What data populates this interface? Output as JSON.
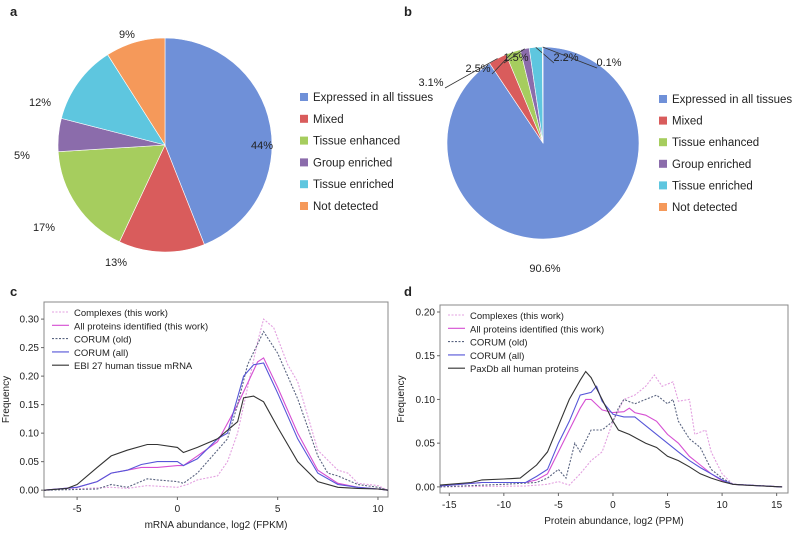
{
  "panels": {
    "a": "a",
    "b": "b",
    "c": "c",
    "d": "d"
  },
  "chart_data": [
    {
      "type": "pie",
      "panel": "a",
      "categories": [
        "Expressed in all tissues",
        "Mixed",
        "Tissue enhanced",
        "Group enriched",
        "Tissue enriched",
        "Not detected"
      ],
      "values": [
        44,
        13,
        17,
        5,
        12,
        9
      ],
      "labels": [
        "44%",
        "13%",
        "17%",
        "5%",
        "12%",
        "9%"
      ],
      "colors": [
        "#6f90d8",
        "#d95c5c",
        "#a6cd5e",
        "#8b6cab",
        "#5ec6df",
        "#f5995a"
      ],
      "legend": "right"
    },
    {
      "type": "pie",
      "panel": "b",
      "categories": [
        "Expressed in all tissues",
        "Mixed",
        "Tissue enhanced",
        "Group enriched",
        "Tissue enriched",
        "Not detected"
      ],
      "values": [
        90.6,
        3.1,
        2.5,
        1.5,
        2.2,
        0.1
      ],
      "labels": [
        "90.6%",
        "3.1%",
        "2.5%",
        "1.5%",
        "2.2%",
        "0.1%"
      ],
      "colors": [
        "#6f90d8",
        "#d95c5c",
        "#a6cd5e",
        "#8b6cab",
        "#5ec6df",
        "#f5995a"
      ],
      "legend": "right"
    },
    {
      "type": "line",
      "panel": "c",
      "xlabel": "mRNA abundance, log2 (FPKM)",
      "ylabel": "Frequency",
      "xlim": [
        -6.65,
        10.5
      ],
      "ylim": [
        -0.012,
        0.33
      ],
      "xticks": [
        -5,
        0,
        5,
        10
      ],
      "yticks": [
        0,
        0.05,
        0.1,
        0.15,
        0.2,
        0.25,
        0.3
      ],
      "ytick_labels": [
        "0.00",
        "0.05",
        "0.10",
        "0.15",
        "0.20",
        "0.25",
        "0.30"
      ],
      "legend": "top-left",
      "grid": false,
      "series": [
        {
          "name": "Complexes (this work)",
          "color": "#e3a0e0",
          "dash": "dotted",
          "x": [
            -6.65,
            -3.3,
            -2.5,
            -1.5,
            0,
            0.5,
            1,
            2,
            2.5,
            3,
            3.5,
            4,
            4.3,
            4.8,
            5.5,
            6,
            7,
            8,
            8.5,
            9,
            10,
            10.5
          ],
          "y": [
            0,
            0.005,
            0.003,
            0.008,
            0.005,
            0.01,
            0.018,
            0.025,
            0.05,
            0.1,
            0.18,
            0.26,
            0.3,
            0.285,
            0.22,
            0.19,
            0.07,
            0.035,
            0.03,
            0.012,
            0.008,
            0
          ]
        },
        {
          "name": "All proteins identified (this work)",
          "color": "#d64fd3",
          "dash": "solid",
          "x": [
            -6.65,
            -5,
            -4,
            -3.3,
            -2.5,
            -1.8,
            -1,
            0,
            0.3,
            1,
            2,
            3,
            4,
            4.3,
            5,
            6,
            7,
            8,
            9,
            10,
            10.5
          ],
          "y": [
            0,
            0.005,
            0.015,
            0.03,
            0.035,
            0.04,
            0.04,
            0.043,
            0.043,
            0.06,
            0.085,
            0.15,
            0.225,
            0.232,
            0.18,
            0.1,
            0.035,
            0.012,
            0.005,
            0.002,
            0
          ]
        },
        {
          "name": "CORUM (old)",
          "color": "#5a6480",
          "dash": "dotted",
          "x": [
            -6.65,
            -4,
            -3.3,
            -2.5,
            -1.5,
            -1,
            0,
            0.3,
            1,
            2,
            2.5,
            3,
            3.5,
            4.3,
            5,
            6,
            7,
            7.5,
            8,
            9,
            10,
            10.5
          ],
          "y": [
            0,
            0.002,
            0.01,
            0.005,
            0.02,
            0.018,
            0.015,
            0.012,
            0.03,
            0.07,
            0.09,
            0.15,
            0.22,
            0.278,
            0.24,
            0.16,
            0.06,
            0.03,
            0.025,
            0.01,
            0.005,
            0
          ]
        },
        {
          "name": "CORUM (all)",
          "color": "#5656d8",
          "dash": "solid",
          "x": [
            -6.65,
            -5,
            -4,
            -3.3,
            -2.5,
            -1.8,
            -1,
            0,
            0.3,
            1,
            2,
            2.5,
            3.3,
            3.8,
            4.3,
            5,
            6,
            7,
            8,
            9,
            10,
            10.5
          ],
          "y": [
            0,
            0.005,
            0.015,
            0.03,
            0.035,
            0.045,
            0.05,
            0.05,
            0.043,
            0.055,
            0.09,
            0.1,
            0.2,
            0.22,
            0.223,
            0.17,
            0.09,
            0.03,
            0.01,
            0.005,
            0.002,
            0
          ]
        },
        {
          "name": "EBI 27 human tissue mRNA",
          "color": "#333333",
          "dash": "solid",
          "x": [
            -6.65,
            -5.5,
            -5,
            -4,
            -3.3,
            -2.5,
            -1.5,
            -1,
            0,
            0.3,
            1,
            2,
            3,
            3.3,
            3.8,
            4.3,
            5,
            5.5,
            6,
            7,
            8,
            9,
            10,
            10.5
          ],
          "y": [
            0,
            0.003,
            0.01,
            0.04,
            0.06,
            0.07,
            0.08,
            0.08,
            0.075,
            0.066,
            0.075,
            0.09,
            0.12,
            0.162,
            0.165,
            0.155,
            0.11,
            0.08,
            0.05,
            0.015,
            0.005,
            0.003,
            0.002,
            0
          ]
        }
      ]
    },
    {
      "type": "line",
      "panel": "d",
      "xlabel": "Protein abundance, log2 (PPM)",
      "ylabel": "Frequency",
      "xlim": [
        -15.85,
        16.04
      ],
      "ylim": [
        -0.007,
        0.208
      ],
      "xticks": [
        -15,
        -10,
        -5,
        0,
        5,
        10,
        15
      ],
      "yticks": [
        0,
        0.05,
        0.1,
        0.15,
        0.2
      ],
      "ytick_labels": [
        "0.00",
        "0.05",
        "0.10",
        "0.15",
        "0.20"
      ],
      "legend": "top-left",
      "grid": false,
      "series": [
        {
          "name": "Complexes (this work)",
          "color": "#e3a0e0",
          "dash": "dotted",
          "x": [
            -15.85,
            -8,
            -6,
            -5,
            -4,
            -3,
            -2,
            -1,
            0,
            1,
            2,
            3,
            3.8,
            4.5,
            5.5,
            6,
            7,
            7.5,
            8.5,
            9,
            10,
            11,
            15.5
          ],
          "y": [
            0,
            0.001,
            0.003,
            0.006,
            0.002,
            0.015,
            0.03,
            0.04,
            0.075,
            0.1,
            0.105,
            0.115,
            0.128,
            0.115,
            0.12,
            0.098,
            0.1,
            0.06,
            0.065,
            0.04,
            0.015,
            0.003,
            0
          ]
        },
        {
          "name": "All proteins identified (this work)",
          "color": "#d64fd3",
          "dash": "solid",
          "x": [
            -15.85,
            -12,
            -8,
            -7,
            -6,
            -5,
            -4,
            -3,
            -2.5,
            -2,
            -1,
            0,
            1,
            1.5,
            2,
            3,
            4,
            5,
            6,
            7,
            8,
            9,
            10,
            11,
            15.5
          ],
          "y": [
            0.001,
            0.005,
            0.005,
            0.008,
            0.015,
            0.04,
            0.065,
            0.09,
            0.1,
            0.1,
            0.088,
            0.085,
            0.086,
            0.09,
            0.085,
            0.082,
            0.075,
            0.06,
            0.05,
            0.035,
            0.025,
            0.015,
            0.007,
            0.003,
            0
          ]
        },
        {
          "name": "CORUM (old)",
          "color": "#5a6480",
          "dash": "dotted",
          "x": [
            -15.85,
            -10,
            -7,
            -6,
            -5,
            -4.3,
            -3.5,
            -3,
            -2,
            -1,
            0,
            0.5,
            1,
            2,
            3,
            4,
            5,
            5.5,
            6,
            7,
            8,
            9,
            10,
            11,
            15.5
          ],
          "y": [
            0,
            0.003,
            0.005,
            0.01,
            0.02,
            0.01,
            0.05,
            0.04,
            0.065,
            0.065,
            0.075,
            0.09,
            0.1,
            0.095,
            0.1,
            0.105,
            0.095,
            0.1,
            0.075,
            0.055,
            0.045,
            0.02,
            0.01,
            0.003,
            0
          ]
        },
        {
          "name": "CORUM (all)",
          "color": "#5656d8",
          "dash": "solid",
          "x": [
            -15.85,
            -12,
            -10,
            -8,
            -7,
            -6,
            -5,
            -4,
            -3,
            -2,
            -1.5,
            -1,
            0,
            1,
            2,
            3,
            4,
            5,
            6,
            7,
            8,
            9,
            10,
            11,
            15.5
          ],
          "y": [
            0.001,
            0.005,
            0.005,
            0.005,
            0.012,
            0.02,
            0.05,
            0.075,
            0.105,
            0.108,
            0.115,
            0.098,
            0.083,
            0.08,
            0.08,
            0.07,
            0.06,
            0.05,
            0.04,
            0.03,
            0.022,
            0.015,
            0.008,
            0.003,
            0
          ]
        },
        {
          "name": "PaxDb all human proteins",
          "color": "#333333",
          "dash": "solid",
          "x": [
            -15.85,
            -13,
            -12,
            -10,
            -8.5,
            -7,
            -6,
            -5,
            -4,
            -3,
            -2.5,
            -2,
            -1,
            0,
            0.5,
            1.5,
            3,
            4,
            5,
            6,
            7,
            8,
            9,
            10,
            11,
            12,
            15.5
          ],
          "y": [
            0.002,
            0.005,
            0.008,
            0.009,
            0.01,
            0.025,
            0.04,
            0.07,
            0.1,
            0.122,
            0.132,
            0.125,
            0.1,
            0.075,
            0.065,
            0.06,
            0.05,
            0.045,
            0.035,
            0.03,
            0.023,
            0.015,
            0.01,
            0.006,
            0.003,
            0.002,
            0
          ]
        }
      ]
    }
  ]
}
